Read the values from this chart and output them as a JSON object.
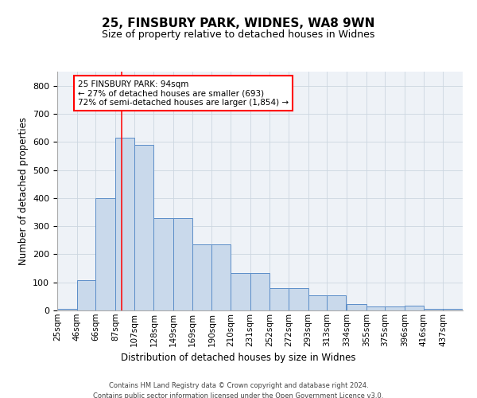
{
  "title": "25, FINSBURY PARK, WIDNES, WA8 9WN",
  "subtitle": "Size of property relative to detached houses in Widnes",
  "xlabel": "Distribution of detached houses by size in Widnes",
  "ylabel": "Number of detached properties",
  "bar_left_edges": [
    25,
    46,
    66,
    87,
    107,
    128,
    149,
    169,
    190,
    210,
    231,
    252,
    272,
    293,
    313,
    334,
    355,
    375,
    396,
    416,
    437
  ],
  "bar_widths": [
    21,
    20,
    21,
    20,
    21,
    21,
    20,
    21,
    20,
    21,
    21,
    20,
    21,
    20,
    20,
    21,
    20,
    21,
    20,
    21,
    21
  ],
  "bar_heights": [
    5,
    107,
    400,
    615,
    590,
    328,
    328,
    235,
    235,
    133,
    133,
    78,
    78,
    53,
    53,
    22,
    14,
    14,
    16,
    5,
    5
  ],
  "bar_facecolor": "#c9d9eb",
  "bar_edgecolor": "#5b8dc8",
  "grid_color": "#ccd6e0",
  "bg_color": "#eef2f7",
  "ylim": [
    0,
    850
  ],
  "yticks": [
    0,
    100,
    200,
    300,
    400,
    500,
    600,
    700,
    800
  ],
  "red_line_x": 94,
  "annotation_line1": "25 FINSBURY PARK: 94sqm",
  "annotation_line2": "← 27% of detached houses are smaller (693)",
  "annotation_line3": "72% of semi-detached houses are larger (1,854) →",
  "footer_line1": "Contains HM Land Registry data © Crown copyright and database right 2024.",
  "footer_line2": "Contains public sector information licensed under the Open Government Licence v3.0.",
  "tick_labels": [
    "25sqm",
    "46sqm",
    "66sqm",
    "87sqm",
    "107sqm",
    "128sqm",
    "149sqm",
    "169sqm",
    "190sqm",
    "210sqm",
    "231sqm",
    "252sqm",
    "272sqm",
    "293sqm",
    "313sqm",
    "334sqm",
    "355sqm",
    "375sqm",
    "396sqm",
    "416sqm",
    "437sqm"
  ]
}
